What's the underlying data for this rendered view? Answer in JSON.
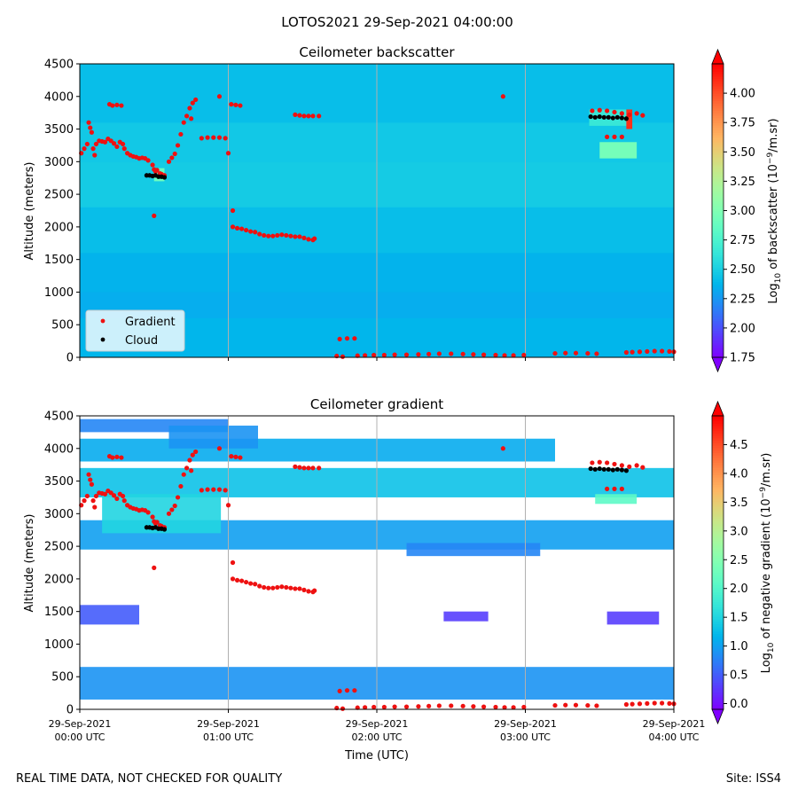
{
  "figure": {
    "suptitle": "LOTOS2021 29-Sep-2021 04:00:00",
    "footer_left": "REAL TIME DATA, NOT CHECKED FOR QUALITY",
    "footer_right": "Site: ISS4",
    "colors": {
      "gradient_marker": "#ee1111",
      "cloud_marker": "#000000",
      "gridline": "#b0b0b0"
    }
  },
  "chart_data": [
    {
      "type": "heatmap",
      "title": "Ceilometer backscatter",
      "xlabel": "",
      "ylabel": "Altitude (meters)",
      "ylim": [
        0,
        4500
      ],
      "yticks": [
        0,
        500,
        1000,
        1500,
        2000,
        2500,
        3000,
        3500,
        4000,
        4500
      ],
      "xlim_hours": [
        0,
        4
      ],
      "xticks_hours": [
        0,
        1,
        2,
        3,
        4
      ],
      "colorbar": {
        "label_pre": "Log",
        "label_sub": "10",
        "label_mid": " of backscatter (10",
        "label_sup": "−9",
        "label_post": "/m.sr)",
        "range": [
          1.75,
          4.25
        ],
        "ticks": [
          "1.75",
          "2.00",
          "2.25",
          "2.50",
          "2.75",
          "3.00",
          "3.25",
          "3.50",
          "3.75",
          "4.00"
        ],
        "tick_values": [
          1.75,
          2.0,
          2.25,
          2.5,
          2.75,
          3.0,
          3.25,
          3.5,
          3.75,
          4.0
        ]
      },
      "field_bands": [
        {
          "alt": [
            0,
            600
          ],
          "value": 2.38
        },
        {
          "alt": [
            600,
            1000
          ],
          "value": 2.34
        },
        {
          "alt": [
            1000,
            1600
          ],
          "value": 2.36
        },
        {
          "alt": [
            1600,
            2300
          ],
          "value": 2.42
        },
        {
          "alt": [
            2300,
            3000
          ],
          "value": 2.5
        },
        {
          "alt": [
            3000,
            3600
          ],
          "value": 2.48
        },
        {
          "alt": [
            3600,
            4500
          ],
          "value": 2.42
        }
      ],
      "field_patches": [
        {
          "t": [
            0.5,
            0.57
          ],
          "alt": [
            2700,
            2900
          ],
          "value": 2.9
        },
        {
          "t": [
            3.43,
            3.68
          ],
          "alt": [
            3550,
            3800
          ],
          "value": 2.65
        },
        {
          "t": [
            3.5,
            3.75
          ],
          "alt": [
            3050,
            3300
          ],
          "value": 2.95
        },
        {
          "t": [
            3.68,
            3.72
          ],
          "alt": [
            3500,
            3800
          ],
          "value": 4.1
        }
      ],
      "legend": {
        "location": "lower left",
        "entries": [
          "Gradient",
          "Cloud"
        ]
      }
    },
    {
      "type": "heatmap",
      "title": "Ceilometer gradient",
      "xlabel": "Time (UTC)",
      "ylabel": "Altitude (meters)",
      "ylim": [
        0,
        4500
      ],
      "yticks": [
        0,
        500,
        1000,
        1500,
        2000,
        2500,
        3000,
        3500,
        4000,
        4500
      ],
      "xlim_hours": [
        0,
        4
      ],
      "xticks_hours": [
        0,
        1,
        2,
        3,
        4
      ],
      "xtick_labels": [
        [
          "29-Sep-2021",
          "00:00 UTC"
        ],
        [
          "29-Sep-2021",
          "01:00 UTC"
        ],
        [
          "29-Sep-2021",
          "02:00 UTC"
        ],
        [
          "29-Sep-2021",
          "03:00 UTC"
        ],
        [
          "29-Sep-2021",
          "04:00 UTC"
        ]
      ],
      "colorbar": {
        "label_pre": "Log",
        "label_sub": "10",
        "label_mid": " of negative gradient (10",
        "label_sup": "−9",
        "label_post": "/m.sr)",
        "range": [
          -0.1,
          5.0
        ],
        "ticks": [
          "0.0",
          "0.5",
          "1.0",
          "1.5",
          "2.0",
          "2.5",
          "3.0",
          "3.5",
          "4.0",
          "4.5"
        ],
        "tick_values": [
          0.0,
          0.5,
          1.0,
          1.5,
          2.0,
          2.5,
          3.0,
          3.5,
          4.0,
          4.5
        ]
      },
      "field_bands": [
        {
          "t": [
            0,
            4
          ],
          "alt": [
            150,
            650
          ],
          "value": 0.9
        },
        {
          "t": [
            0,
            4
          ],
          "alt": [
            2450,
            2900
          ],
          "value": 1.0
        },
        {
          "t": [
            0,
            4
          ],
          "alt": [
            3250,
            3700
          ],
          "value": 1.3
        },
        {
          "t": [
            0,
            3.2
          ],
          "alt": [
            3800,
            4150
          ],
          "value": 1.1
        },
        {
          "t": [
            0,
            1.0
          ],
          "alt": [
            4250,
            4450
          ],
          "value": 0.8
        },
        {
          "t": [
            0.15,
            0.95
          ],
          "alt": [
            2700,
            3300
          ],
          "value": 1.5
        },
        {
          "t": [
            0.6,
            1.2
          ],
          "alt": [
            4000,
            4350
          ],
          "value": 0.9
        },
        {
          "t": [
            2.2,
            3.1
          ],
          "alt": [
            2350,
            2550
          ],
          "value": 0.8
        },
        {
          "t": [
            0,
            0.4
          ],
          "alt": [
            1300,
            1600
          ],
          "value": 0.5
        },
        {
          "t": [
            2.45,
            2.75
          ],
          "alt": [
            1350,
            1500
          ],
          "value": 0.3
        },
        {
          "t": [
            3.55,
            3.9
          ],
          "alt": [
            1300,
            1500
          ],
          "value": 0.3
        },
        {
          "t": [
            3.47,
            3.75
          ],
          "alt": [
            3150,
            3300
          ],
          "value": 2.1
        }
      ]
    }
  ],
  "overlay_series": [
    {
      "name": "Gradient",
      "marker": "dot",
      "points": [
        [
          0.01,
          3130
        ],
        [
          0.03,
          3200
        ],
        [
          0.05,
          3270
        ],
        [
          0.06,
          3600
        ],
        [
          0.07,
          3520
        ],
        [
          0.08,
          3450
        ],
        [
          0.09,
          3200
        ],
        [
          0.1,
          3100
        ],
        [
          0.11,
          3270
        ],
        [
          0.13,
          3320
        ],
        [
          0.15,
          3310
        ],
        [
          0.17,
          3300
        ],
        [
          0.19,
          3350
        ],
        [
          0.21,
          3320
        ],
        [
          0.23,
          3280
        ],
        [
          0.25,
          3230
        ],
        [
          0.27,
          3300
        ],
        [
          0.29,
          3270
        ],
        [
          0.3,
          3200
        ],
        [
          0.32,
          3130
        ],
        [
          0.34,
          3100
        ],
        [
          0.36,
          3080
        ],
        [
          0.38,
          3070
        ],
        [
          0.4,
          3050
        ],
        [
          0.42,
          3060
        ],
        [
          0.44,
          3050
        ],
        [
          0.46,
          3020
        ],
        [
          0.49,
          2950
        ],
        [
          0.5,
          2880
        ],
        [
          0.51,
          2850
        ],
        [
          0.52,
          2870
        ],
        [
          0.54,
          2820
        ],
        [
          0.55,
          2810
        ],
        [
          0.57,
          2790
        ],
        [
          0.5,
          2170
        ],
        [
          0.2,
          3880
        ],
        [
          0.22,
          3860
        ],
        [
          0.25,
          3870
        ],
        [
          0.28,
          3860
        ],
        [
          0.6,
          3000
        ],
        [
          0.62,
          3060
        ],
        [
          0.64,
          3120
        ],
        [
          0.66,
          3250
        ],
        [
          0.68,
          3420
        ],
        [
          0.7,
          3600
        ],
        [
          0.72,
          3700
        ],
        [
          0.74,
          3820
        ],
        [
          0.76,
          3900
        ],
        [
          0.78,
          3950
        ],
        [
          0.75,
          3660
        ],
        [
          0.82,
          3360
        ],
        [
          0.86,
          3370
        ],
        [
          0.9,
          3370
        ],
        [
          0.94,
          3370
        ],
        [
          0.98,
          3360
        ],
        [
          0.94,
          4000
        ],
        [
          1.0,
          3130
        ],
        [
          1.02,
          3880
        ],
        [
          1.05,
          3870
        ],
        [
          1.08,
          3860
        ],
        [
          1.03,
          2250
        ],
        [
          1.03,
          2000
        ],
        [
          1.06,
          1980
        ],
        [
          1.09,
          1970
        ],
        [
          1.12,
          1950
        ],
        [
          1.15,
          1930
        ],
        [
          1.18,
          1920
        ],
        [
          1.21,
          1890
        ],
        [
          1.24,
          1870
        ],
        [
          1.27,
          1860
        ],
        [
          1.3,
          1860
        ],
        [
          1.33,
          1870
        ],
        [
          1.36,
          1880
        ],
        [
          1.39,
          1870
        ],
        [
          1.42,
          1860
        ],
        [
          1.45,
          1850
        ],
        [
          1.48,
          1850
        ],
        [
          1.51,
          1830
        ],
        [
          1.54,
          1810
        ],
        [
          1.57,
          1800
        ],
        [
          1.58,
          1820
        ],
        [
          1.45,
          3720
        ],
        [
          1.48,
          3710
        ],
        [
          1.51,
          3700
        ],
        [
          1.54,
          3700
        ],
        [
          1.57,
          3700
        ],
        [
          1.61,
          3700
        ],
        [
          1.75,
          280
        ],
        [
          1.8,
          290
        ],
        [
          1.85,
          290
        ],
        [
          1.73,
          20
        ],
        [
          1.77,
          10
        ],
        [
          1.87,
          25
        ],
        [
          1.92,
          30
        ],
        [
          1.98,
          35
        ],
        [
          2.05,
          35
        ],
        [
          2.12,
          40
        ],
        [
          2.2,
          40
        ],
        [
          2.28,
          45
        ],
        [
          2.35,
          50
        ],
        [
          2.42,
          55
        ],
        [
          2.5,
          55
        ],
        [
          2.58,
          50
        ],
        [
          2.65,
          45
        ],
        [
          2.72,
          40
        ],
        [
          2.8,
          35
        ],
        [
          2.86,
          30
        ],
        [
          2.92,
          30
        ],
        [
          2.99,
          35
        ],
        [
          2.85,
          4000
        ],
        [
          3.2,
          60
        ],
        [
          3.27,
          65
        ],
        [
          3.34,
          65
        ],
        [
          3.42,
          60
        ],
        [
          3.48,
          55
        ],
        [
          3.45,
          3780
        ],
        [
          3.5,
          3790
        ],
        [
          3.55,
          3780
        ],
        [
          3.6,
          3760
        ],
        [
          3.65,
          3740
        ],
        [
          3.7,
          3720
        ],
        [
          3.75,
          3740
        ],
        [
          3.79,
          3710
        ],
        [
          3.55,
          3380
        ],
        [
          3.6,
          3380
        ],
        [
          3.65,
          3380
        ],
        [
          3.68,
          75
        ],
        [
          3.72,
          80
        ],
        [
          3.77,
          85
        ],
        [
          3.82,
          90
        ],
        [
          3.87,
          95
        ],
        [
          3.92,
          95
        ],
        [
          3.97,
          90
        ],
        [
          4.0,
          85
        ]
      ]
    },
    {
      "name": "Cloud",
      "marker": "dot",
      "points": [
        [
          0.45,
          2790
        ],
        [
          0.47,
          2790
        ],
        [
          0.49,
          2780
        ],
        [
          0.51,
          2790
        ],
        [
          0.53,
          2770
        ],
        [
          0.55,
          2770
        ],
        [
          0.57,
          2760
        ],
        [
          3.44,
          3690
        ],
        [
          3.47,
          3680
        ],
        [
          3.5,
          3690
        ],
        [
          3.53,
          3680
        ],
        [
          3.56,
          3680
        ],
        [
          3.59,
          3670
        ],
        [
          3.62,
          3680
        ],
        [
          3.65,
          3670
        ],
        [
          3.68,
          3660
        ]
      ]
    }
  ]
}
